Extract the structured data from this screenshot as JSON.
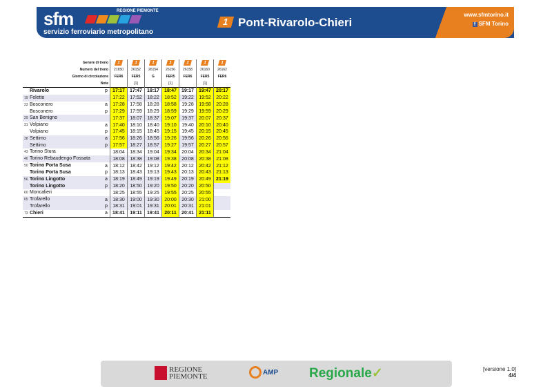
{
  "header": {
    "logo_text": "sfm",
    "region": "REGIONE PIEMONTE",
    "tagline": "servizio ferroviario metropolitano",
    "line_number": "1",
    "line_title": "Pont-Rivarolo-Chieri",
    "website": "www.sfmtorino.it",
    "facebook": "SFM Torino",
    "colors": {
      "blue": "#1d4c8f",
      "orange": "#e8801f",
      "highlight": "#ffff00"
    }
  },
  "table": {
    "row_labels": {
      "genre": "Genere di treno",
      "number": "Numero del treno",
      "days": "Giorno di circolazione",
      "notes": "Note"
    },
    "trains": [
      {
        "number": "21650",
        "days": "FER6",
        "note": ""
      },
      {
        "number": "26152",
        "days": "FER5",
        "note": "[1]"
      },
      {
        "number": "26154",
        "days": "G",
        "note": ""
      },
      {
        "number": "26156",
        "days": "FER5",
        "note": "[1]"
      },
      {
        "number": "26158",
        "days": "FER6",
        "note": ""
      },
      {
        "number": "26160",
        "days": "FER5",
        "note": "[1]"
      },
      {
        "number": "26162",
        "days": "FER6",
        "note": ""
      }
    ],
    "stops": [
      {
        "km": "",
        "name": "Rivarolo",
        "ap": "p",
        "bold": true,
        "alt": false,
        "times": [
          "17:17",
          "17:47",
          "18:17",
          "18:47",
          "19:17",
          "19:47",
          "20:17"
        ],
        "hl": [
          0,
          3,
          5,
          6
        ]
      },
      {
        "km": "19",
        "name": "Feletto",
        "ap": "",
        "bold": false,
        "alt": true,
        "times": [
          "17:22",
          "17:52",
          "18:22",
          "18:52",
          "19:22",
          "19:52",
          "20:22"
        ],
        "hl": [
          0,
          3,
          5,
          6
        ]
      },
      {
        "km": "23",
        "name": "Bosconero",
        "ap": "a",
        "bold": false,
        "alt": false,
        "times": [
          "17:28",
          "17:58",
          "18:28",
          "18:58",
          "19:28",
          "19:58",
          "20:28"
        ],
        "hl": [
          0,
          3,
          5,
          6
        ]
      },
      {
        "km": "",
        "name": "Bosconero",
        "ap": "p",
        "bold": false,
        "alt": false,
        "times": [
          "17:29",
          "17:59",
          "18:29",
          "18:59",
          "19:29",
          "19:59",
          "20:29"
        ],
        "hl": [
          0,
          3,
          5,
          6
        ]
      },
      {
        "km": "29",
        "name": "San Benigno",
        "ap": "",
        "bold": false,
        "alt": true,
        "times": [
          "17:37",
          "18:07",
          "18:37",
          "19:07",
          "19:37",
          "20:07",
          "20:37"
        ],
        "hl": [
          0,
          3,
          5,
          6
        ]
      },
      {
        "km": "31",
        "name": "Volpiano",
        "ap": "a",
        "bold": false,
        "alt": false,
        "times": [
          "17:40",
          "18:10",
          "18:40",
          "19:10",
          "19:40",
          "20:10",
          "20:40"
        ],
        "hl": [
          0,
          3,
          5,
          6
        ]
      },
      {
        "km": "",
        "name": "Volpiano",
        "ap": "p",
        "bold": false,
        "alt": false,
        "times": [
          "17:45",
          "18:15",
          "18:45",
          "19:15",
          "19:45",
          "20:15",
          "20:45"
        ],
        "hl": [
          0,
          3,
          5,
          6
        ]
      },
      {
        "km": "38",
        "name": "Settimo",
        "ap": "a",
        "bold": false,
        "alt": true,
        "times": [
          "17:56",
          "18:26",
          "18:56",
          "19:26",
          "19:56",
          "20:26",
          "20:56"
        ],
        "hl": [
          0,
          3,
          5,
          6
        ]
      },
      {
        "km": "",
        "name": "Settimo",
        "ap": "p",
        "bold": false,
        "alt": true,
        "times": [
          "17:57",
          "18:27",
          "18:57",
          "19:27",
          "19:57",
          "20:27",
          "20:57"
        ],
        "hl": [
          0,
          3,
          5,
          6
        ]
      },
      {
        "km": "43",
        "name": "Torino Stura",
        "ap": "",
        "bold": false,
        "alt": false,
        "times": [
          "18:04",
          "18:34",
          "19:04",
          "19:34",
          "20:04",
          "20:34",
          "21:04"
        ],
        "hl": [
          3,
          5,
          6
        ]
      },
      {
        "km": "46",
        "name": "Torino Rebaudengo Fossata",
        "ap": "",
        "bold": false,
        "alt": true,
        "times": [
          "18:08",
          "18:38",
          "19:08",
          "19:38",
          "20:08",
          "20:38",
          "21:08"
        ],
        "hl": [
          3,
          5,
          6
        ]
      },
      {
        "km": "50",
        "name": "Torino Porta Susa",
        "ap": "a",
        "bold": true,
        "alt": false,
        "times": [
          "18:12",
          "18:42",
          "19:12",
          "19:42",
          "20:12",
          "20:42",
          "21:12"
        ],
        "hl": [
          3,
          5,
          6
        ]
      },
      {
        "km": "",
        "name": "Torino Porta Susa",
        "ap": "p",
        "bold": true,
        "alt": false,
        "times": [
          "18:13",
          "18:43",
          "19:13",
          "19:43",
          "20:13",
          "20:43",
          "21:13"
        ],
        "hl": [
          3,
          5,
          6
        ]
      },
      {
        "km": "56",
        "name": "Torino Lingotto",
        "ap": "a",
        "bold": true,
        "alt": true,
        "times": [
          "18:19",
          "18:49",
          "19:19",
          "19:49",
          "20:19",
          "20:49",
          "21:19"
        ],
        "hl": [
          3,
          5,
          6
        ],
        "bold_times": [
          6
        ]
      },
      {
        "km": "",
        "name": "Torino Lingotto",
        "ap": "p",
        "bold": true,
        "alt": true,
        "times": [
          "18:20",
          "18:50",
          "19:20",
          "19:50",
          "20:20",
          "20:50",
          ""
        ],
        "hl": [
          3,
          5
        ]
      },
      {
        "km": "60",
        "name": "Moncalieri",
        "ap": "",
        "bold": false,
        "alt": false,
        "times": [
          "18:25",
          "18:55",
          "19:25",
          "19:55",
          "20:25",
          "20:55",
          ""
        ],
        "hl": [
          3,
          5
        ]
      },
      {
        "km": "65",
        "name": "Trofarello",
        "ap": "a",
        "bold": false,
        "alt": true,
        "times": [
          "18:30",
          "19:00",
          "19:30",
          "20:00",
          "20:30",
          "21:00",
          ""
        ],
        "hl": [
          3,
          5
        ]
      },
      {
        "km": "",
        "name": "Trofarello",
        "ap": "p",
        "bold": false,
        "alt": true,
        "times": [
          "18:31",
          "19:01",
          "19:31",
          "20:01",
          "20:31",
          "21:01",
          ""
        ],
        "hl": [
          3,
          5
        ]
      },
      {
        "km": "73",
        "name": "Chieri",
        "ap": "a",
        "bold": true,
        "alt": false,
        "times": [
          "18:41",
          "19:11",
          "19:41",
          "20:11",
          "20:41",
          "21:11",
          ""
        ],
        "hl": [
          3,
          5
        ],
        "bold_times": [
          0,
          1,
          2,
          3,
          4,
          5
        ]
      }
    ]
  },
  "footer": {
    "regione": "REGIONE PIEMONTE",
    "amp": "AMP",
    "regionale": "Regionale",
    "version": "[versione 1.0]",
    "page": "4/4"
  }
}
